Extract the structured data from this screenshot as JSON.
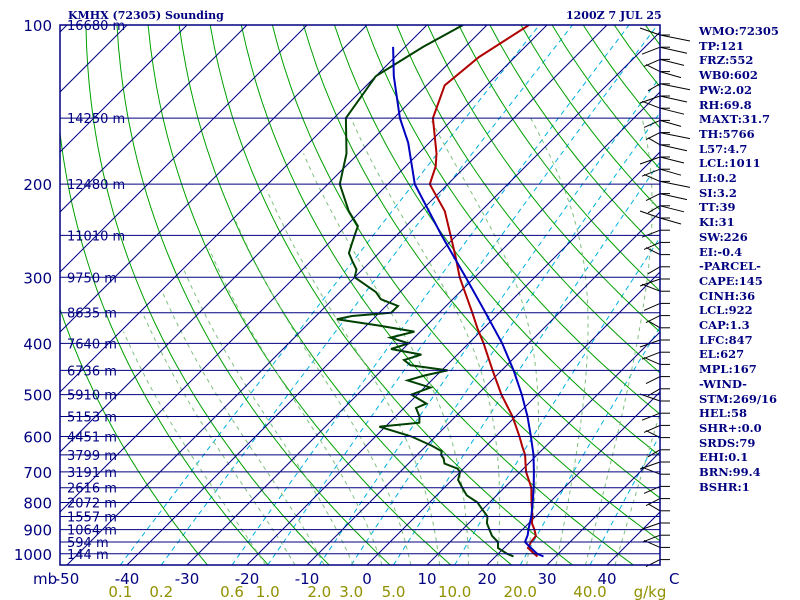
{
  "header": {
    "title": "KMHX (72305) Sounding",
    "time": "1200Z  7 JUL 25"
  },
  "colors": {
    "isobar": "#000080",
    "isotherm": "#000080",
    "dry_adiabat": "#00a000",
    "moist_adiabat": "#80c080",
    "mixing_ratio": "#00b0e0",
    "temperature": "#b00000",
    "dewpoint": "#004000",
    "parcel": "#0000c0",
    "mixing_labels": "#909000",
    "index_text": "#000080",
    "wind": "#000000"
  },
  "chart_data": {
    "type": "line",
    "title": "KMHX (72305) Sounding",
    "xlabel": "",
    "ylabel": "mb",
    "xlim": [
      -50,
      50
    ],
    "ylim": [
      1000,
      100
    ],
    "y_scale": "log-pressure",
    "skew": true,
    "grid": true,
    "pressure_ticks": [
      100,
      200,
      300,
      400,
      500,
      600,
      700,
      800,
      900,
      1000
    ],
    "temperature_ticks": [
      -50,
      -40,
      -30,
      -20,
      -10,
      0,
      10,
      20,
      30,
      40,
      50
    ],
    "mixing_ratio_labels": [
      "0.1",
      "0.2",
      "0.6",
      "1.0",
      "2.0",
      "3.0",
      "5.0",
      "10.0",
      "20.0",
      "40.0"
    ],
    "mixing_ratio_values": [
      0.1,
      0.2,
      0.6,
      1.0,
      2.0,
      3.0,
      5.0,
      10.0,
      20.0,
      40.0
    ],
    "mixing_ratio_unit": "g/kg",
    "height_labels": [
      {
        "p": 100,
        "label": "16680 m"
      },
      {
        "p": 150,
        "label": "14250 m"
      },
      {
        "p": 200,
        "label": "12480 m"
      },
      {
        "p": 250,
        "label": "11010 m"
      },
      {
        "p": 300,
        "label": "9750 m"
      },
      {
        "p": 350,
        "label": "8635 m"
      },
      {
        "p": 400,
        "label": "7640 m"
      },
      {
        "p": 450,
        "label": "6736 m"
      },
      {
        "p": 500,
        "label": "5910 m"
      },
      {
        "p": 550,
        "label": "5153 m"
      },
      {
        "p": 600,
        "label": "4451 m"
      },
      {
        "p": 650,
        "label": "3799 m"
      },
      {
        "p": 700,
        "label": "3191 m"
      },
      {
        "p": 750,
        "label": "2616 m"
      },
      {
        "p": 800,
        "label": "2072 m"
      },
      {
        "p": 850,
        "label": "1557 m"
      },
      {
        "p": 900,
        "label": "1064 m"
      },
      {
        "p": 950,
        "label": "594 m"
      },
      {
        "p": 1000,
        "label": "144 m"
      }
    ],
    "series": [
      {
        "key": "temperature",
        "points": [
          [
            1012,
            27
          ],
          [
            1000,
            26
          ],
          [
            975,
            24
          ],
          [
            950,
            23.5
          ],
          [
            925,
            23.3
          ],
          [
            900,
            22
          ],
          [
            875,
            20.5
          ],
          [
            850,
            19.5
          ],
          [
            800,
            17
          ],
          [
            750,
            14.5
          ],
          [
            700,
            11
          ],
          [
            675,
            9.5
          ],
          [
            650,
            8
          ],
          [
            625,
            6
          ],
          [
            600,
            4
          ],
          [
            550,
            -0.5
          ],
          [
            500,
            -6
          ],
          [
            450,
            -11.5
          ],
          [
            400,
            -17.5
          ],
          [
            375,
            -21
          ],
          [
            350,
            -24.5
          ],
          [
            300,
            -32.5
          ],
          [
            275,
            -36.5
          ],
          [
            250,
            -41
          ],
          [
            225,
            -46
          ],
          [
            200,
            -53
          ],
          [
            185,
            -55
          ],
          [
            175,
            -57
          ],
          [
            150,
            -63.5
          ],
          [
            130,
            -67
          ],
          [
            115,
            -66
          ],
          [
            100,
            -63
          ]
        ]
      },
      {
        "key": "dewpoint",
        "points": [
          [
            1012,
            23
          ],
          [
            1000,
            21.5
          ],
          [
            975,
            19
          ],
          [
            950,
            18
          ],
          [
            925,
            16
          ],
          [
            900,
            14.5
          ],
          [
            875,
            13
          ],
          [
            850,
            12
          ],
          [
            825,
            10
          ],
          [
            800,
            8
          ],
          [
            775,
            5
          ],
          [
            750,
            3
          ],
          [
            725,
            1
          ],
          [
            700,
            0
          ],
          [
            690,
            -1
          ],
          [
            675,
            -4
          ],
          [
            660,
            -5
          ],
          [
            650,
            -6
          ],
          [
            640,
            -6.5
          ],
          [
            625,
            -9
          ],
          [
            600,
            -14
          ],
          [
            575,
            -21
          ],
          [
            565,
            -15
          ],
          [
            550,
            -16
          ],
          [
            530,
            -18
          ],
          [
            520,
            -17
          ],
          [
            500,
            -21
          ],
          [
            485,
            -19
          ],
          [
            470,
            -24
          ],
          [
            460,
            -22
          ],
          [
            450,
            -19
          ],
          [
            440,
            -26
          ],
          [
            430,
            -28
          ],
          [
            420,
            -26
          ],
          [
            410,
            -32
          ],
          [
            400,
            -30
          ],
          [
            390,
            -34
          ],
          [
            380,
            -31
          ],
          [
            370,
            -38
          ],
          [
            360,
            -46
          ],
          [
            355,
            -44
          ],
          [
            350,
            -38
          ],
          [
            340,
            -38
          ],
          [
            330,
            -42
          ],
          [
            320,
            -44
          ],
          [
            300,
            -50
          ],
          [
            290,
            -51
          ],
          [
            280,
            -53
          ],
          [
            270,
            -55
          ],
          [
            260,
            -56
          ],
          [
            250,
            -57
          ],
          [
            245,
            -57.5
          ],
          [
            240,
            -58
          ],
          [
            225,
            -62
          ],
          [
            200,
            -68
          ],
          [
            175,
            -72
          ],
          [
            150,
            -78
          ],
          [
            125,
            -80
          ],
          [
            110,
            -77
          ],
          [
            100,
            -74
          ]
        ]
      },
      {
        "key": "parcel",
        "points": [
          [
            1012,
            28
          ],
          [
            1000,
            26.5
          ],
          [
            975,
            24.5
          ],
          [
            950,
            22.5
          ],
          [
            922,
            21.8
          ],
          [
            900,
            21
          ],
          [
            850,
            19.3
          ],
          [
            800,
            17.2
          ],
          [
            750,
            14.9
          ],
          [
            700,
            12.3
          ],
          [
            650,
            9.4
          ],
          [
            600,
            5.9
          ],
          [
            550,
            2
          ],
          [
            500,
            -2.6
          ],
          [
            450,
            -8
          ],
          [
            400,
            -14.4
          ],
          [
            350,
            -22.3
          ],
          [
            300,
            -31.5
          ],
          [
            250,
            -42.5
          ],
          [
            200,
            -55.5
          ],
          [
            167,
            -63.5
          ],
          [
            150,
            -69
          ],
          [
            125,
            -77
          ],
          [
            110,
            -82
          ]
        ]
      }
    ],
    "wind_barbs_side": "right"
  },
  "indices": {
    "lines": [
      "WMO:72305",
      "TP:121",
      "FRZ:552",
      "WB0:602",
      "PW:2.02",
      "RH:69.8",
      "MAXT:31.7",
      "TH:5766",
      "L57:4.7",
      "LCL:1011",
      "LI:0.2",
      "SI:3.2",
      "TT:39",
      "KI:31",
      "SW:226",
      "EI:-0.4",
      "-PARCEL-",
      "CAPE:145",
      "CINH:36",
      "LCL:922",
      "CAP:1.3",
      "LFC:847",
      "EL:627",
      "MPL:167",
      "-WIND-",
      "STM:269/16",
      "HEL:58",
      "SHR+:0.0",
      "SRDS:79",
      "EHI:0.1",
      "BRN:99.4",
      "BSHR:1"
    ]
  }
}
